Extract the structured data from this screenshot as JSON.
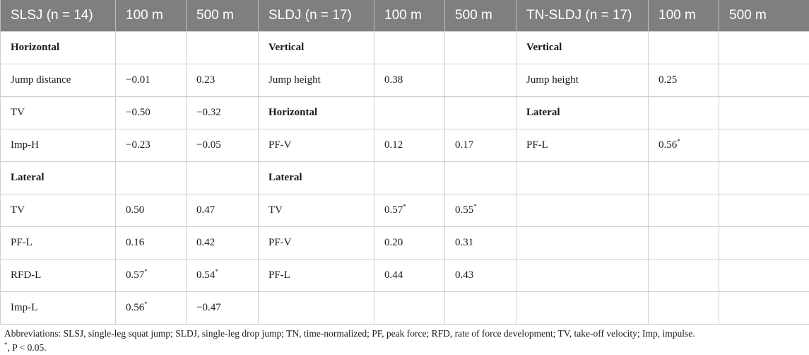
{
  "headers": [
    "SLSJ (n = 14)",
    "100 m",
    "500 m",
    "SLDJ (n = 17)",
    "100 m",
    "500 m",
    "TN-SLDJ (n = 17)",
    "100 m",
    "500 m"
  ],
  "rows": [
    [
      {
        "t": "Horizontal",
        "b": true
      },
      {
        "t": ""
      },
      {
        "t": ""
      },
      {
        "t": "Vertical",
        "b": true
      },
      {
        "t": ""
      },
      {
        "t": ""
      },
      {
        "t": "Vertical",
        "b": true
      },
      {
        "t": ""
      },
      {
        "t": ""
      }
    ],
    [
      {
        "t": "Jump distance"
      },
      {
        "t": "−0.01"
      },
      {
        "t": "0.23"
      },
      {
        "t": "Jump height"
      },
      {
        "t": "0.38"
      },
      {
        "t": ""
      },
      {
        "t": "Jump height"
      },
      {
        "t": "0.25"
      },
      {
        "t": ""
      }
    ],
    [
      {
        "t": "TV"
      },
      {
        "t": "−0.50"
      },
      {
        "t": "−0.32"
      },
      {
        "t": "Horizontal",
        "b": true
      },
      {
        "t": ""
      },
      {
        "t": ""
      },
      {
        "t": "Lateral",
        "b": true
      },
      {
        "t": ""
      },
      {
        "t": ""
      }
    ],
    [
      {
        "t": "Imp-H"
      },
      {
        "t": "−0.23"
      },
      {
        "t": "−0.05"
      },
      {
        "t": "PF-V"
      },
      {
        "t": "0.12"
      },
      {
        "t": "0.17"
      },
      {
        "t": "PF-L"
      },
      {
        "t": "0.56",
        "s": "*"
      },
      {
        "t": ""
      }
    ],
    [
      {
        "t": "Lateral",
        "b": true
      },
      {
        "t": ""
      },
      {
        "t": ""
      },
      {
        "t": "Lateral",
        "b": true
      },
      {
        "t": ""
      },
      {
        "t": ""
      },
      {
        "t": ""
      },
      {
        "t": ""
      },
      {
        "t": ""
      }
    ],
    [
      {
        "t": "TV"
      },
      {
        "t": "0.50"
      },
      {
        "t": "0.47"
      },
      {
        "t": "TV"
      },
      {
        "t": "0.57",
        "s": "*"
      },
      {
        "t": "0.55",
        "s": "*"
      },
      {
        "t": ""
      },
      {
        "t": ""
      },
      {
        "t": ""
      }
    ],
    [
      {
        "t": "PF-L"
      },
      {
        "t": "0.16"
      },
      {
        "t": "0.42"
      },
      {
        "t": "PF-V"
      },
      {
        "t": "0.20"
      },
      {
        "t": "0.31"
      },
      {
        "t": ""
      },
      {
        "t": ""
      },
      {
        "t": ""
      }
    ],
    [
      {
        "t": "RFD-L"
      },
      {
        "t": "0.57",
        "s": "*"
      },
      {
        "t": "0.54",
        "s": "*"
      },
      {
        "t": "PF-L"
      },
      {
        "t": "0.44"
      },
      {
        "t": "0.43"
      },
      {
        "t": ""
      },
      {
        "t": ""
      },
      {
        "t": ""
      }
    ],
    [
      {
        "t": "Imp-L"
      },
      {
        "t": "0.56",
        "s": "*"
      },
      {
        "t": "−0.47"
      },
      {
        "t": ""
      },
      {
        "t": ""
      },
      {
        "t": ""
      },
      {
        "t": ""
      },
      {
        "t": ""
      },
      {
        "t": ""
      }
    ]
  ],
  "footnotes": {
    "abbreviations": "Abbreviations: SLSJ, single-leg squat jump; SLDJ, single-leg drop jump; TN, time-normalized; PF, peak force; RFD, rate of force development; TV, take-off velocity; Imp, impulse.",
    "sig_mark": "*",
    "sig_text": ", P < 0.05."
  }
}
